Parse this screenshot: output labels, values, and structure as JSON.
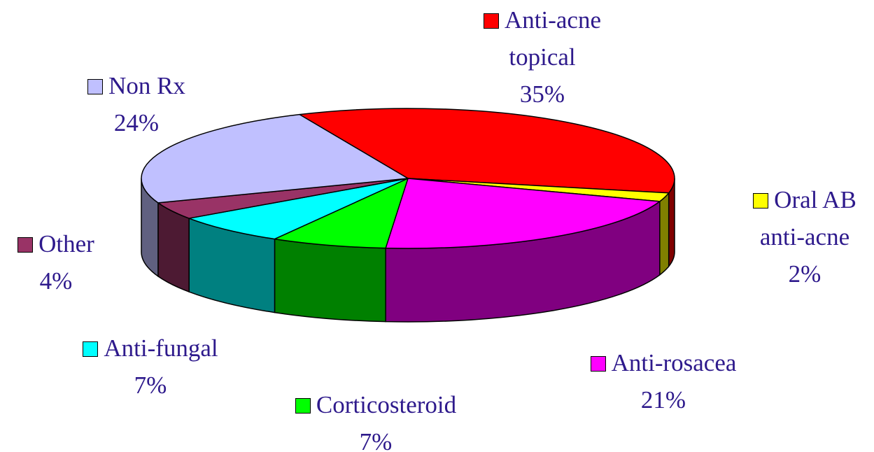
{
  "chart_data": {
    "type": "pie",
    "categories": [
      "Anti-acne topical",
      "Oral AB anti-acne",
      "Anti-rosacea",
      "Corticosteroid",
      "Anti-fungal",
      "Other",
      "Non Rx"
    ],
    "values": [
      35,
      2,
      21,
      7,
      7,
      4,
      24
    ],
    "value_labels": [
      "35%",
      "2%",
      "21%",
      "7%",
      "7%",
      "4%",
      "24%"
    ],
    "colors": [
      "#ff0000",
      "#ffff00",
      "#ff00ff",
      "#00ff00",
      "#00ffff",
      "#993366",
      "#c0c0ff"
    ],
    "legend": true
  }
}
